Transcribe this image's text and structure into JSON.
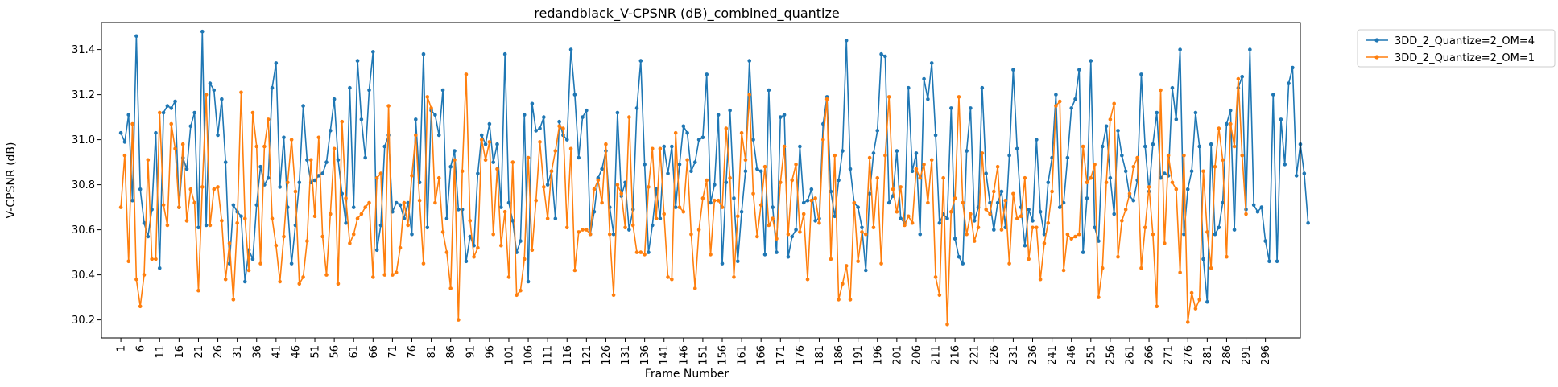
{
  "colors": {
    "series_1": "#1f77b4",
    "series_2": "#ff7f0e",
    "axis": "#000000",
    "legend_border": "#cccccc"
  },
  "chart_data": {
    "type": "line",
    "title": "redandblack_V-CPSNR (dB)_combined_quantize",
    "xlabel": "Frame Number",
    "ylabel": "V-CPSNR (dB)",
    "xlim": [
      -4,
      305
    ],
    "ylim": [
      30.12,
      31.52
    ],
    "grid": false,
    "legend_position": "outside-top-right",
    "x_ticks": [
      1,
      6,
      11,
      16,
      21,
      26,
      31,
      36,
      41,
      46,
      51,
      56,
      61,
      66,
      71,
      76,
      81,
      86,
      91,
      96,
      101,
      106,
      111,
      116,
      121,
      126,
      131,
      136,
      141,
      146,
      151,
      156,
      161,
      166,
      171,
      176,
      181,
      186,
      191,
      196,
      201,
      206,
      211,
      216,
      221,
      226,
      231,
      236,
      241,
      246,
      251,
      256,
      261,
      266,
      271,
      276,
      281,
      286,
      291,
      296
    ],
    "y_ticks": [
      "30.2",
      "30.4",
      "30.6",
      "30.8",
      "31.0",
      "31.2",
      "31.4"
    ],
    "x_start": 1,
    "series": [
      {
        "name": "3DD_2_Quantize=2_OM=4",
        "marker": "circle",
        "values": [
          31.03,
          30.99,
          31.11,
          30.73,
          31.46,
          30.78,
          30.63,
          30.57,
          30.69,
          31.03,
          30.43,
          31.12,
          31.15,
          31.14,
          31.17,
          30.7,
          30.92,
          30.87,
          31.06,
          31.12,
          30.61,
          31.48,
          30.62,
          31.25,
          31.22,
          31.02,
          31.18,
          30.9,
          30.45,
          30.71,
          30.68,
          30.66,
          30.37,
          30.51,
          30.47,
          30.71,
          30.88,
          30.8,
          30.83,
          31.23,
          31.34,
          30.79,
          31.01,
          30.7,
          30.45,
          30.62,
          30.81,
          31.15,
          30.91,
          30.81,
          30.82,
          30.84,
          30.85,
          30.9,
          31.04,
          31.18,
          30.91,
          30.76,
          30.63,
          31.23,
          30.7,
          31.35,
          31.09,
          30.92,
          31.22,
          31.39,
          30.51,
          30.62,
          30.97,
          31.02,
          30.68,
          30.72,
          30.71,
          30.65,
          30.72,
          30.58,
          31.09,
          30.81,
          31.38,
          30.61,
          31.13,
          31.11,
          31.02,
          31.22,
          30.65,
          30.88,
          30.95,
          30.69,
          30.69,
          30.46,
          30.57,
          30.53,
          30.85,
          31.02,
          30.98,
          31.07,
          30.9,
          30.98,
          30.7,
          31.38,
          30.72,
          30.64,
          30.5,
          30.55,
          31.11,
          30.37,
          31.16,
          31.04,
          31.05,
          31.1,
          30.8,
          30.86,
          30.65,
          31.08,
          31.02,
          31.0,
          31.4,
          31.2,
          30.92,
          31.1,
          31.13,
          30.58,
          30.68,
          30.83,
          30.87,
          30.95,
          30.7,
          30.58,
          31.12,
          30.75,
          30.81,
          30.6,
          30.69,
          31.14,
          31.35,
          30.89,
          30.5,
          30.62,
          30.78,
          30.65,
          30.97,
          30.85,
          30.97,
          30.7,
          30.89,
          31.06,
          31.03,
          30.86,
          30.9,
          31.0,
          31.01,
          31.29,
          30.72,
          30.8,
          31.11,
          30.45,
          30.81,
          31.13,
          30.74,
          30.46,
          30.68,
          30.86,
          31.35,
          31.0,
          30.87,
          30.86,
          30.49,
          31.22,
          30.7,
          30.5,
          31.1,
          31.11,
          30.48,
          30.57,
          30.6,
          30.97,
          30.72,
          30.73,
          30.78,
          30.64,
          30.65,
          31.07,
          31.19,
          30.77,
          30.66,
          30.82,
          30.95,
          31.44,
          30.87,
          30.72,
          30.7,
          30.61,
          30.42,
          30.76,
          30.94,
          31.04,
          31.38,
          31.37,
          30.72,
          30.75,
          30.95,
          30.65,
          30.63,
          31.23,
          30.86,
          30.94,
          30.58,
          31.27,
          31.18,
          31.34,
          31.02,
          30.63,
          30.67,
          30.65,
          31.14,
          30.56,
          30.48,
          30.45,
          30.95,
          31.14,
          30.64,
          30.7,
          31.23,
          30.85,
          30.72,
          30.6,
          30.72,
          30.77,
          30.61,
          30.93,
          31.31,
          30.96,
          30.7,
          30.53,
          30.69,
          30.64,
          31.0,
          30.68,
          30.58,
          30.81,
          30.92,
          31.2,
          30.7,
          30.72,
          30.92,
          31.14,
          31.18,
          31.31,
          30.5,
          30.74,
          31.35,
          30.61,
          30.55,
          30.97,
          31.06,
          30.83,
          30.67,
          31.04,
          30.93,
          30.86,
          30.75,
          30.73,
          30.82,
          31.29,
          30.97,
          30.77,
          30.98,
          31.12,
          30.83,
          30.85,
          30.84,
          31.23,
          31.09,
          31.4,
          30.58,
          30.78,
          30.86,
          31.12,
          30.97,
          30.47,
          30.28,
          30.98,
          30.58,
          30.61,
          30.72,
          31.07,
          31.13,
          30.6,
          31.23,
          31.28,
          30.69,
          31.4,
          30.71,
          30.68,
          30.7,
          30.55,
          30.46,
          31.2,
          30.46,
          31.09,
          30.89,
          31.25,
          31.32,
          30.84,
          30.98,
          30.85,
          30.63
        ]
      },
      {
        "name": "3DD_2_Quantize=2_OM=1",
        "marker": "circle",
        "values": [
          30.7,
          30.93,
          30.46,
          31.07,
          30.38,
          30.26,
          30.4,
          30.91,
          30.47,
          30.47,
          31.12,
          30.71,
          30.62,
          31.07,
          30.96,
          30.7,
          30.98,
          30.64,
          30.78,
          30.72,
          30.33,
          30.79,
          31.2,
          30.62,
          30.78,
          30.79,
          30.64,
          30.38,
          30.54,
          30.29,
          30.63,
          31.21,
          30.65,
          30.42,
          31.12,
          30.97,
          30.45,
          30.97,
          31.09,
          30.65,
          30.53,
          30.37,
          30.57,
          30.81,
          31.0,
          30.77,
          30.36,
          30.39,
          30.55,
          30.91,
          30.66,
          31.01,
          30.57,
          30.4,
          30.67,
          30.96,
          30.36,
          31.08,
          30.74,
          30.54,
          30.58,
          30.65,
          30.67,
          30.7,
          30.72,
          30.39,
          30.83,
          30.85,
          30.4,
          31.15,
          30.4,
          30.41,
          30.52,
          30.72,
          30.62,
          30.84,
          31.02,
          30.73,
          30.45,
          31.19,
          31.14,
          30.72,
          30.83,
          30.59,
          30.5,
          30.34,
          30.91,
          30.2,
          30.86,
          31.29,
          30.64,
          30.48,
          30.52,
          31.0,
          30.91,
          30.99,
          30.58,
          30.87,
          30.53,
          30.68,
          30.39,
          30.9,
          30.31,
          30.33,
          30.47,
          30.92,
          30.51,
          30.73,
          30.99,
          30.79,
          30.65,
          30.86,
          30.95,
          31.06,
          31.05,
          30.61,
          30.96,
          30.42,
          30.59,
          30.6,
          30.6,
          30.58,
          30.78,
          30.82,
          30.72,
          30.98,
          30.58,
          30.31,
          30.8,
          30.76,
          30.61,
          31.1,
          30.62,
          30.5,
          30.5,
          30.49,
          30.79,
          30.96,
          30.65,
          30.96,
          30.67,
          30.39,
          30.38,
          31.03,
          30.7,
          30.68,
          30.91,
          30.58,
          30.34,
          30.6,
          30.74,
          30.82,
          30.49,
          30.73,
          30.73,
          30.7,
          31.05,
          30.83,
          30.39,
          30.66,
          31.03,
          30.91,
          31.2,
          30.76,
          30.57,
          30.71,
          30.88,
          30.62,
          30.65,
          30.56,
          30.81,
          30.97,
          30.58,
          30.82,
          30.89,
          30.59,
          30.67,
          30.38,
          30.73,
          30.74,
          30.63,
          31.0,
          31.18,
          30.47,
          30.93,
          30.29,
          30.36,
          30.44,
          30.29,
          30.72,
          30.46,
          30.59,
          30.58,
          30.92,
          30.61,
          30.83,
          30.45,
          30.93,
          31.19,
          30.78,
          30.68,
          30.79,
          30.62,
          30.66,
          30.63,
          30.87,
          30.83,
          30.89,
          30.72,
          30.91,
          30.39,
          30.31,
          30.83,
          30.18,
          30.68,
          30.74,
          31.19,
          30.72,
          30.58,
          30.67,
          30.55,
          30.61,
          30.94,
          30.69,
          30.67,
          30.77,
          30.88,
          30.6,
          30.73,
          30.45,
          30.76,
          30.65,
          30.66,
          30.83,
          30.47,
          30.61,
          30.61,
          30.38,
          30.54,
          30.63,
          30.77,
          31.15,
          31.17,
          30.42,
          30.58,
          30.56,
          30.57,
          30.58,
          30.97,
          30.81,
          30.83,
          30.89,
          30.3,
          30.43,
          30.81,
          31.09,
          31.16,
          30.48,
          30.64,
          30.69,
          30.76,
          30.88,
          30.92,
          30.43,
          30.61,
          30.79,
          30.58,
          30.26,
          31.22,
          30.54,
          30.93,
          30.81,
          30.78,
          30.41,
          30.93,
          30.19,
          30.32,
          30.25,
          30.29,
          30.86,
          30.59,
          30.43,
          30.88,
          31.05,
          30.91,
          30.48,
          31.07,
          30.97,
          31.27,
          30.93,
          30.67
        ]
      }
    ]
  }
}
